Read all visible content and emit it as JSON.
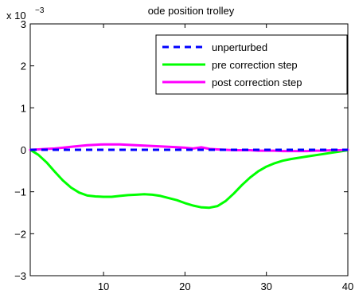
{
  "chart_data": {
    "type": "line",
    "title": "ode position trolley",
    "xlabel": "",
    "ylabel": "",
    "y_scale_label": "x 10",
    "y_scale_exponent": "−3",
    "xlim": [
      1,
      40
    ],
    "ylim": [
      -3,
      3
    ],
    "x_ticks": [
      10,
      20,
      30,
      40
    ],
    "y_ticks": [
      -3,
      -2,
      -1,
      0,
      1,
      2,
      3
    ],
    "y_tick_labels": [
      "−3",
      "−2",
      "−1",
      "0",
      "1",
      "2",
      "3"
    ],
    "legend_position": "top-right",
    "grid": false,
    "series": [
      {
        "name": "unperturbed",
        "color": "#0000ff",
        "style": "dashed",
        "x": [
          1,
          5,
          10,
          15,
          20,
          25,
          30,
          35,
          40
        ],
        "y": [
          0,
          0,
          0,
          0,
          0,
          0,
          0,
          0,
          0
        ]
      },
      {
        "name": "pre correction step",
        "color": "#00ff00",
        "style": "solid",
        "x": [
          1,
          2,
          3,
          4,
          5,
          6,
          7,
          8,
          9,
          10,
          11,
          12,
          13,
          14,
          15,
          16,
          17,
          18,
          19,
          20,
          21,
          22,
          23,
          24,
          25,
          26,
          27,
          28,
          29,
          30,
          31,
          32,
          33,
          34,
          35,
          36,
          37,
          38,
          39,
          40
        ],
        "y": [
          0,
          -0.12,
          -0.3,
          -0.52,
          -0.73,
          -0.9,
          -1.02,
          -1.09,
          -1.11,
          -1.12,
          -1.12,
          -1.1,
          -1.08,
          -1.07,
          -1.06,
          -1.07,
          -1.1,
          -1.15,
          -1.2,
          -1.27,
          -1.33,
          -1.37,
          -1.38,
          -1.34,
          -1.22,
          -1.04,
          -0.84,
          -0.66,
          -0.51,
          -0.4,
          -0.32,
          -0.26,
          -0.22,
          -0.19,
          -0.16,
          -0.13,
          -0.1,
          -0.07,
          -0.04,
          -0.01
        ]
      },
      {
        "name": "post correction step",
        "color": "#ff00ff",
        "style": "solid",
        "x": [
          1,
          2,
          3,
          4,
          5,
          6,
          7,
          8,
          9,
          10,
          11,
          12,
          13,
          14,
          15,
          16,
          17,
          18,
          19,
          20,
          21,
          22,
          23,
          24,
          25,
          26,
          27,
          28,
          29,
          30,
          31,
          32,
          33,
          34,
          35,
          36,
          37,
          38,
          39,
          40
        ],
        "y": [
          0,
          0.01,
          0.02,
          0.03,
          0.05,
          0.07,
          0.09,
          0.11,
          0.12,
          0.13,
          0.13,
          0.13,
          0.12,
          0.11,
          0.1,
          0.09,
          0.08,
          0.07,
          0.06,
          0.05,
          0.03,
          0.06,
          0.02,
          0.01,
          0.0,
          -0.01,
          -0.01,
          -0.01,
          -0.02,
          -0.02,
          -0.02,
          -0.03,
          -0.03,
          -0.03,
          -0.03,
          -0.02,
          -0.02,
          -0.01,
          -0.01,
          0.0
        ]
      }
    ]
  }
}
